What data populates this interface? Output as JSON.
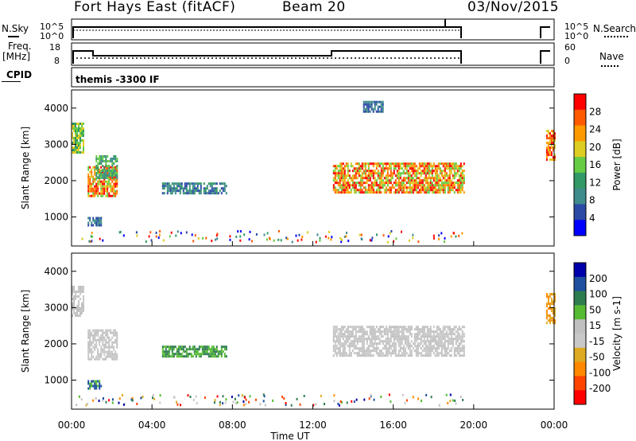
{
  "header": {
    "station": "Fort Hays East (fitACF)",
    "beam": "Beam 20",
    "date": "03/Nov/2015"
  },
  "top_panels": {
    "nsky_label": "N.Sky",
    "nsearch_label": "N.Search",
    "freq_label_line1": "Freq.",
    "freq_label_line2": "[MHz]",
    "nave_label": "Nave",
    "cpid_label": "CPID",
    "cpid_value": "themis -3300 IF",
    "noise_ticks_left": [
      "10^5",
      "10^0"
    ],
    "noise_ticks_right": [
      "10^5",
      "10^0"
    ],
    "freq_ticks": [
      "18",
      "8"
    ],
    "nave_ticks": [
      "60",
      "0"
    ]
  },
  "colors": {
    "power": [
      "#0000ff",
      "#2a4aa6",
      "#3f8c8c",
      "#339966",
      "#66cc44",
      "#ddcc22",
      "#ff9900",
      "#ff5a00",
      "#ff0000"
    ],
    "velocity": [
      "#0000aa",
      "#1f4f9f",
      "#2e7d4f",
      "#55bb33",
      "#c0c0c0",
      "#c8c8c8",
      "#ddaa22",
      "#ff8800",
      "#ff4400",
      "#ff0000"
    ]
  },
  "chart_data": [
    {
      "type": "heatmap",
      "name": "power",
      "ylabel": "Slant Range [km]",
      "yticks": [
        "1000",
        "2000",
        "3000",
        "4000"
      ],
      "ylim": [
        200,
        4500
      ],
      "xlim": [
        0,
        24
      ],
      "colorbar_label": "Power [dB]",
      "colorbar_ticks": [
        "4",
        "8",
        "12",
        "16",
        "20",
        "24",
        "28"
      ],
      "regions": [
        {
          "t": [
            0.0,
            0.6
          ],
          "r": [
            2800,
            3600
          ],
          "levels": [
            3,
            4,
            5
          ]
        },
        {
          "t": [
            0.8,
            2.3
          ],
          "r": [
            1600,
            2400
          ],
          "levels": [
            4,
            5,
            6,
            7,
            8
          ]
        },
        {
          "t": [
            1.2,
            2.3
          ],
          "r": [
            2100,
            2700
          ],
          "levels": [
            2,
            3,
            4
          ]
        },
        {
          "t": [
            0.8,
            1.5
          ],
          "r": [
            800,
            1000
          ],
          "levels": [
            2,
            1
          ]
        },
        {
          "t": [
            4.5,
            7.7
          ],
          "r": [
            1650,
            1950
          ],
          "levels": [
            1,
            2,
            3
          ]
        },
        {
          "t": [
            13.0,
            19.5
          ],
          "r": [
            1700,
            2500
          ],
          "levels": [
            4,
            5,
            6,
            7,
            8
          ]
        },
        {
          "t": [
            14.5,
            15.5
          ],
          "r": [
            3900,
            4200
          ],
          "levels": [
            1,
            2
          ]
        },
        {
          "t": [
            23.6,
            24.0
          ],
          "r": [
            2600,
            3400
          ],
          "levels": [
            5,
            6,
            7,
            8
          ]
        }
      ]
    },
    {
      "type": "heatmap",
      "name": "velocity",
      "ylabel": "Slant Range [km]",
      "yticks": [
        "1000",
        "2000",
        "3000",
        "4000"
      ],
      "ylim": [
        200,
        4500
      ],
      "xlim": [
        0,
        24
      ],
      "xlabel": "Time UT",
      "xticks": [
        "00:00",
        "04:00",
        "08:00",
        "12:00",
        "16:00",
        "20:00",
        "00:00"
      ],
      "colorbar_label": "Velocity [m s-1]",
      "colorbar_ticks": [
        "200",
        "100",
        "50",
        "15",
        "-15",
        "-50",
        "-100",
        "-200"
      ],
      "regions": [
        {
          "t": [
            0.0,
            0.6
          ],
          "r": [
            2800,
            3600
          ],
          "levels": [
            4,
            5
          ]
        },
        {
          "t": [
            0.8,
            2.3
          ],
          "r": [
            1600,
            2400
          ],
          "levels": [
            4,
            5
          ]
        },
        {
          "t": [
            0.8,
            1.5
          ],
          "r": [
            800,
            1000
          ],
          "levels": [
            3,
            1
          ]
        },
        {
          "t": [
            4.5,
            7.7
          ],
          "r": [
            1650,
            1950
          ],
          "levels": [
            3,
            2
          ]
        },
        {
          "t": [
            13.0,
            19.5
          ],
          "r": [
            1700,
            2500
          ],
          "levels": [
            4,
            5
          ]
        },
        {
          "t": [
            23.6,
            24.0
          ],
          "r": [
            2600,
            3400
          ],
          "levels": [
            6,
            7
          ]
        }
      ]
    }
  ]
}
